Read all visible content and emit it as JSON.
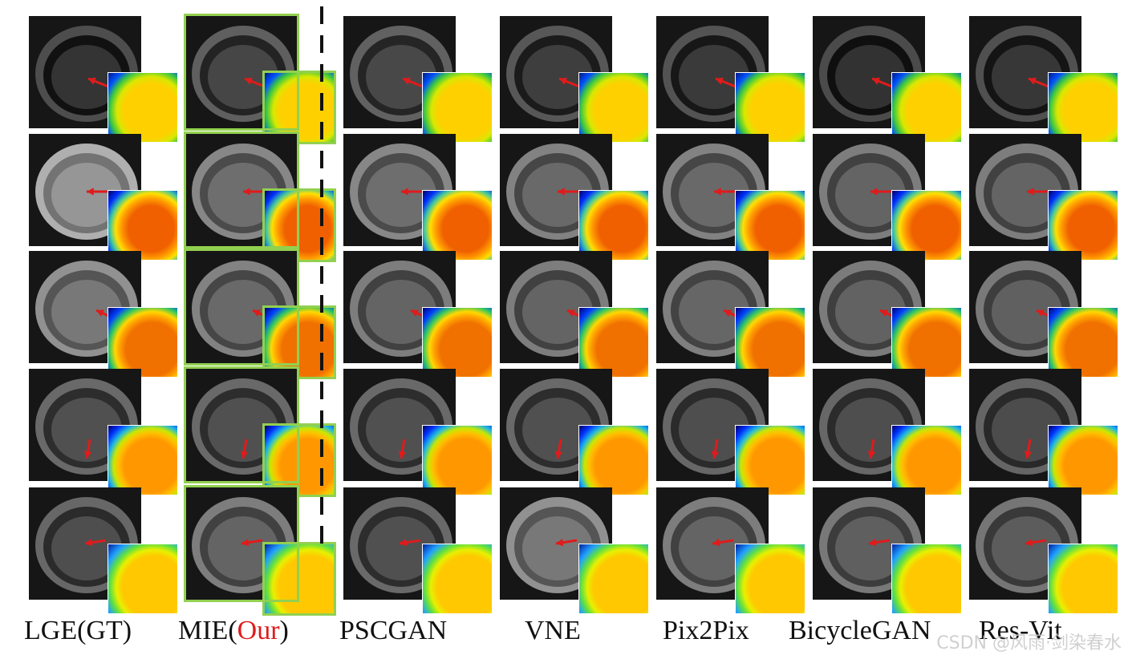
{
  "columns": [
    {
      "label": "LGE(GT)"
    },
    {
      "label_prefix": "MIE(",
      "label_highlight": "Our",
      "label_suffix": ")"
    },
    {
      "label": "PSCGAN"
    },
    {
      "label": "VNE"
    },
    {
      "label": "Pix2Pix"
    },
    {
      "label": "BicycleGAN"
    },
    {
      "label": "Res-Vit"
    }
  ],
  "rows": 5,
  "watermark": "CSDN @风雨·剑染春水",
  "colors": {
    "highlight_text": "#e01b1b",
    "ours_frame": "#92d050",
    "arrow": "#e01b1b",
    "divider": "#111111"
  }
}
